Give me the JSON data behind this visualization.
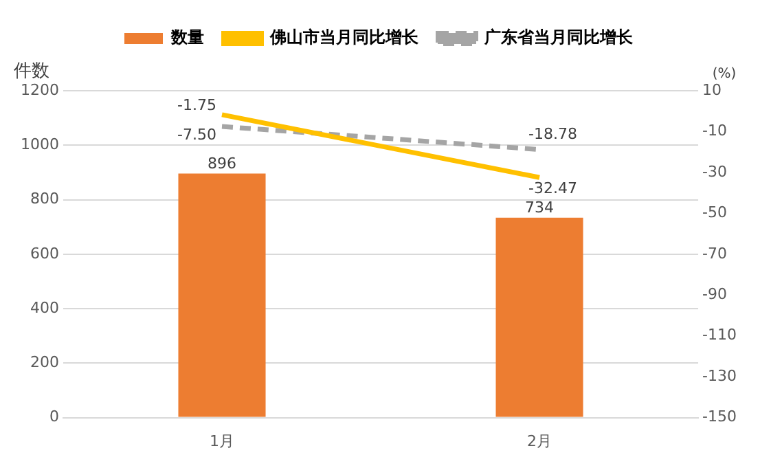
{
  "chart_data": {
    "type": "bar",
    "categories": [
      "1月",
      "2月"
    ],
    "series": [
      {
        "name": "数量",
        "color": "#ed7d31",
        "values": [
          896,
          734
        ],
        "value_labels": [
          "896",
          "734"
        ]
      },
      {
        "name": "佛山市当月同比增长",
        "type": "line",
        "axis": "y2",
        "color": "#ffc000",
        "line_style": "solid",
        "values": [
          -1.75,
          -32.47
        ],
        "value_labels": [
          "-1.75",
          "-32.47"
        ]
      },
      {
        "name": "广东省当月同比增长",
        "type": "line",
        "axis": "y2",
        "color": "#a5a5a5",
        "line_style": "dashed",
        "values": [
          -7.5,
          -18.78
        ],
        "value_labels": [
          "-7.50",
          "-18.78"
        ]
      }
    ],
    "ylabel": "件数",
    "y2label": "(%)",
    "ylim": [
      0,
      1200
    ],
    "yticks": [
      0,
      200,
      400,
      600,
      800,
      1000,
      1200
    ],
    "y2lim": [
      -150,
      10
    ],
    "y2ticks": [
      -150,
      -130,
      -110,
      -90,
      -70,
      -50,
      -30,
      -10,
      10
    ],
    "grid": "y",
    "legend": "top",
    "marker": "none"
  }
}
